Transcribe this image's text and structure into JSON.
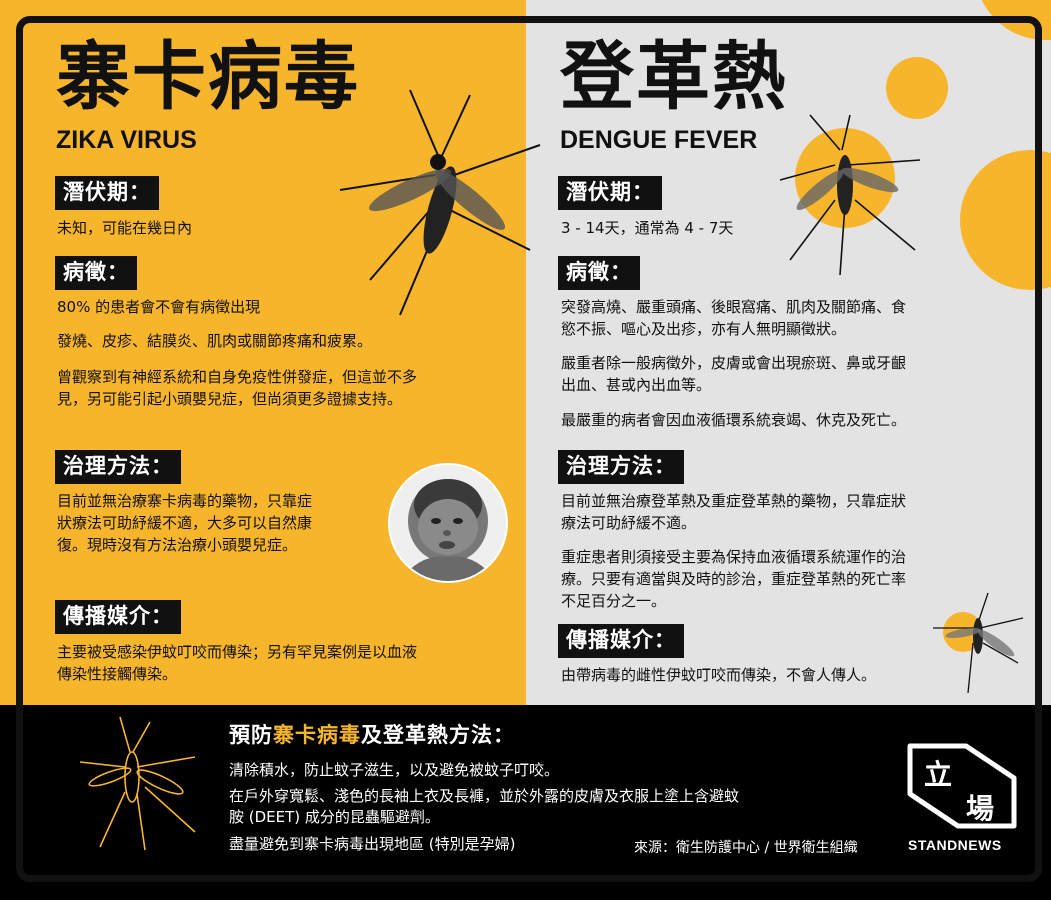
{
  "colors": {
    "accent_yellow": "#f7b52c",
    "panel_grey": "#e3e3e3",
    "ink": "#111111"
  },
  "zika": {
    "title_zh": "寨卡病毒",
    "title_en": "ZIKA VIRUS",
    "incubation": {
      "label": "潛伏期：",
      "lines": [
        "未知，可能在幾日內"
      ]
    },
    "symptoms": {
      "label": "病徵：",
      "lines": [
        "80% 的患者會不會有病徵出現",
        "發燒、皮疹、結膜炎、肌肉或關節疼痛和疲累。",
        "曾觀察到有神經系統和自身免疫性併發症，但這並不多",
        "見，另可能引起小頭嬰兒症，但尚須更多證據支持。"
      ]
    },
    "treatment": {
      "label": "治理方法：",
      "lines": [
        "目前並無治療寨卡病毒的藥物，只靠症",
        "狀療法可助紓緩不適，大多可以自然康",
        "復。現時沒有方法治療小頭嬰兒症。"
      ]
    },
    "transmission": {
      "label": "傳播媒介：",
      "lines": [
        "主要被受感染伊蚊叮咬而傳染；另有罕見案例是以血液",
        "傳染性接觸傳染。"
      ]
    }
  },
  "dengue": {
    "title_zh": "登革熱",
    "title_en": "DENGUE FEVER",
    "incubation": {
      "label": "潛伏期：",
      "lines": [
        "3 - 14天，通常為 4 - 7天"
      ]
    },
    "symptoms": {
      "label": "病徵：",
      "lines": [
        "突發高燒、嚴重頭痛、後眼窩痛、肌肉及關節痛、食",
        "慾不振、嘔心及出疹，亦有人無明顯徵狀。",
        "嚴重者除一般病徵外，皮膚或會出現瘀斑、鼻或牙齦",
        "出血、甚或內出血等。",
        "最嚴重的病者會因血液循環系統衰竭、休克及死亡。"
      ]
    },
    "treatment": {
      "label": "治理方法：",
      "lines": [
        "目前並無治療登革熱及重症登革熱的藥物，只靠症狀",
        "療法可助紓緩不適。",
        "重症患者則須接受主要為保持血液循環系統運作的治",
        "療。只要有適當與及時的診治，重症登革熱的死亡率",
        "不足百分之一。"
      ]
    },
    "transmission": {
      "label": "傳播媒介：",
      "lines": [
        "由帶病毒的雌性伊蚊叮咬而傳染，不會人傳人。"
      ]
    }
  },
  "prevention": {
    "title_prefix": "預防",
    "title_highlight": "寨卡病毒",
    "title_suffix": "及登革熱方法：",
    "lines": [
      "清除積水，防止蚊子滋生，以及避免被蚊子叮咬。",
      "在戶外穿寬鬆、淺色的長袖上衣及長褲，並於外露的皮膚及衣服上塗上含避蚊",
      "胺 (DEET) 成分的昆蟲驅避劑。",
      "盡量避免到寨卡病毒出現地區 (特別是孕婦)"
    ],
    "source": "來源：衛生防護中心 / 世界衛生組織"
  },
  "logo": {
    "char_top": "立",
    "char_bottom": "場",
    "wordmark": "STANDNEWS"
  },
  "icons": {
    "mosquito": "mosquito-icon",
    "baby": "baby-photo"
  }
}
